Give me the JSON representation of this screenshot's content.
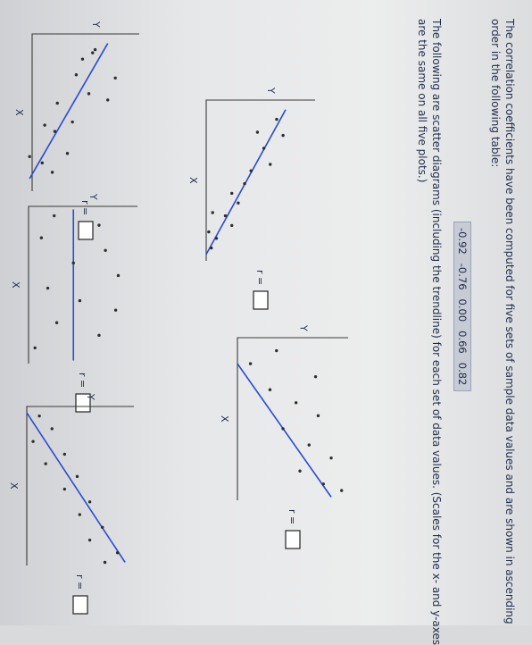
{
  "intro": {
    "line1": "The correlation coefficients have been computed for five sets of sample data values and are shown in ascending",
    "line2": "order in the following table:"
  },
  "coefficients": [
    "-0.92",
    "-0.76",
    "0.00",
    "0.66",
    "0.82"
  ],
  "description": {
    "line1": "The following are scatter diagrams (including the trendline) for each set of data values. (Scales for the x- and y-axes",
    "line2": "are the same on all five plots.)"
  },
  "plot_labels": {
    "x": "X",
    "y": "Y",
    "r": "r ="
  },
  "chart_data": [
    {
      "type": "scatter",
      "xlabel": "X",
      "ylabel": "Y",
      "r_answer": "",
      "points": [
        [
          0.6,
          0.48
        ],
        [
          0.5,
          0.5
        ],
        [
          0.8,
          0.4
        ],
        [
          1.4,
          0.66
        ],
        [
          1.3,
          0.35
        ],
        [
          1.9,
          0.45
        ],
        [
          2.2,
          0.2
        ],
        [
          2.1,
          0.6
        ],
        [
          2.8,
          0.32
        ],
        [
          3.1,
          0.18
        ],
        [
          2.9,
          0.1
        ],
        [
          3.8,
          0.28
        ],
        [
          4.1,
          0.08
        ],
        [
          3.9,
          -0.02
        ],
        [
          4.4,
          0.16
        ]
      ],
      "trendline": [
        [
          0.3,
          0.6
        ],
        [
          4.6,
          -0.02
        ]
      ]
    },
    {
      "type": "scatter",
      "xlabel": "X",
      "ylabel": "Y",
      "r_answer": "",
      "points": [
        [
          0.6,
          0.55
        ],
        [
          1.1,
          0.6
        ],
        [
          1.0,
          0.4
        ],
        [
          1.5,
          0.45
        ],
        [
          2.0,
          0.5
        ],
        [
          2.2,
          0.35
        ],
        [
          2.6,
          0.3
        ],
        [
          2.9,
          0.2
        ],
        [
          3.2,
          0.25
        ],
        [
          3.6,
          0.15
        ],
        [
          3.5,
          0.05
        ],
        [
          3.9,
          0.2
        ],
        [
          4.3,
          0.08
        ],
        [
          4.1,
          0.02
        ],
        [
          4.6,
          0.04
        ]
      ],
      "trendline": [
        [
          0.3,
          0.62
        ],
        [
          4.8,
          0.0
        ]
      ]
    },
    {
      "type": "scatter",
      "xlabel": "X",
      "ylabel": "Y",
      "r_answer": "",
      "points": [
        [
          0.3,
          0.2
        ],
        [
          0.6,
          0.55
        ],
        [
          1.0,
          0.1
        ],
        [
          1.4,
          0.6
        ],
        [
          1.8,
          0.35
        ],
        [
          2.2,
          0.7
        ],
        [
          2.6,
          0.15
        ],
        [
          3.0,
          0.4
        ],
        [
          3.3,
          0.68
        ],
        [
          3.7,
          0.22
        ],
        [
          4.1,
          0.55
        ],
        [
          4.5,
          0.05
        ]
      ],
      "trendline": [
        [
          0.1,
          0.35
        ],
        [
          4.9,
          0.35
        ]
      ]
    },
    {
      "type": "scatter",
      "xlabel": "X",
      "ylabel": "Y",
      "r_answer": "",
      "points": [
        [
          0.4,
          0.3
        ],
        [
          0.8,
          0.1
        ],
        [
          1.2,
          0.6
        ],
        [
          1.6,
          0.25
        ],
        [
          2.0,
          0.45
        ],
        [
          2.4,
          0.62
        ],
        [
          2.8,
          0.35
        ],
        [
          3.3,
          0.55
        ],
        [
          3.7,
          0.72
        ],
        [
          4.1,
          0.48
        ],
        [
          4.5,
          0.66
        ],
        [
          4.7,
          0.8
        ]
      ],
      "trendline": [
        [
          0.8,
          0.0
        ],
        [
          4.9,
          0.72
        ]
      ]
    },
    {
      "type": "scatter",
      "xlabel": "X",
      "ylabel": "Y",
      "r_answer": "",
      "points": [
        [
          0.3,
          0.1
        ],
        [
          0.7,
          0.2
        ],
        [
          1.1,
          0.05
        ],
        [
          1.5,
          0.3
        ],
        [
          1.8,
          0.15
        ],
        [
          2.2,
          0.4
        ],
        [
          2.6,
          0.3
        ],
        [
          3.0,
          0.5
        ],
        [
          3.4,
          0.42
        ],
        [
          3.8,
          0.6
        ],
        [
          4.2,
          0.5
        ],
        [
          4.6,
          0.72
        ],
        [
          4.9,
          0.62
        ]
      ],
      "trendline": [
        [
          0.2,
          0.0
        ],
        [
          4.9,
          0.78
        ]
      ]
    }
  ]
}
